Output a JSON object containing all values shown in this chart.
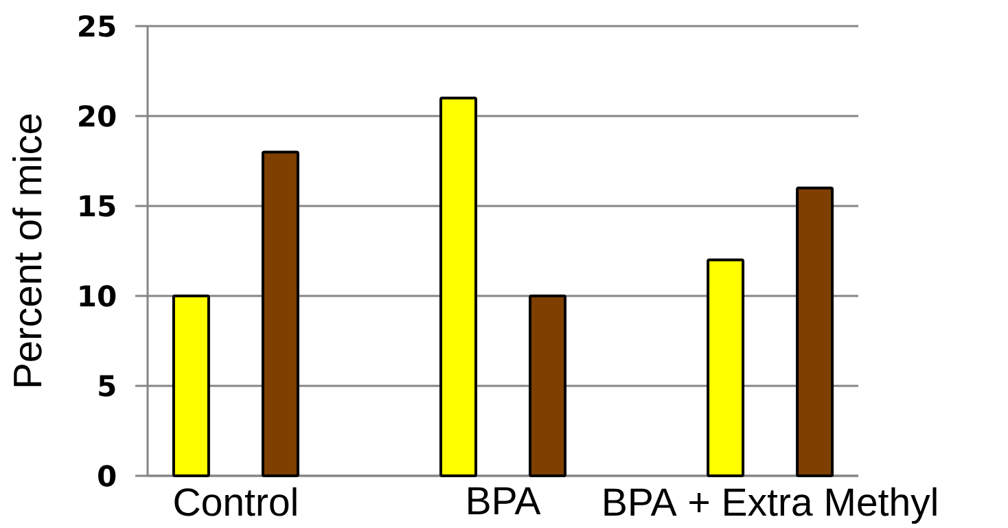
{
  "chart_data": {
    "type": "bar",
    "ylabel": "Percent of mice",
    "categories": [
      "Control",
      "BPA",
      "BPA + Extra Methyl"
    ],
    "series": [
      {
        "color": "#ffff00",
        "values": [
          10,
          21,
          12
        ]
      },
      {
        "color": "#7f3f00",
        "values": [
          18,
          10,
          16
        ]
      }
    ],
    "ylim": [
      0,
      25
    ],
    "yticks": [
      0,
      5,
      10,
      15,
      20,
      25
    ],
    "grid": "y"
  }
}
